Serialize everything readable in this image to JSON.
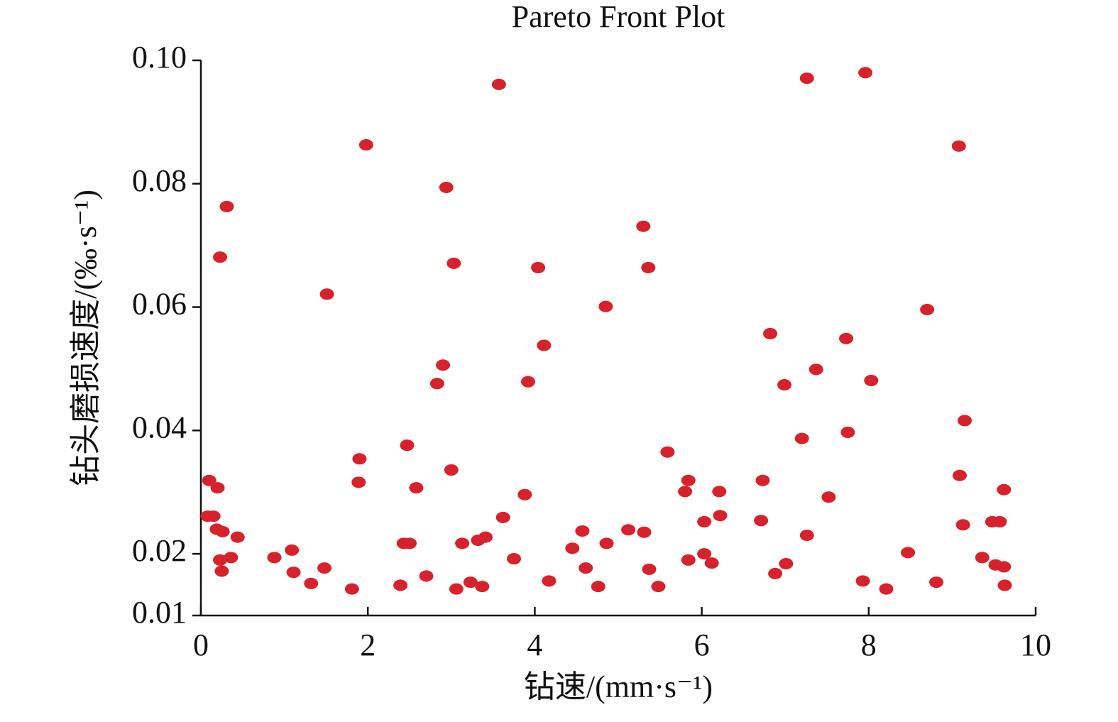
{
  "chart_data": {
    "type": "scatter",
    "title": "Pareto Front Plot",
    "x_label": "钻速/(mm·s⁻¹)",
    "y_label": "钻头磨损速度/(‰·s⁻¹)",
    "color": "#d7222b",
    "x": [
      0.1,
      0.2,
      0.08,
      0.15,
      0.19,
      0.26,
      0.23,
      0.25,
      0.36,
      0.44,
      0.31,
      0.23,
      0.88,
      1.09,
      1.11,
      1.32,
      1.48,
      1.51,
      1.81,
      1.89,
      1.9,
      1.98,
      2.39,
      2.43,
      2.5,
      2.47,
      2.58,
      2.7,
      2.83,
      2.9,
      2.94,
      3.0,
      3.03,
      3.06,
      3.13,
      3.23,
      3.32,
      3.37,
      3.41,
      3.57,
      3.62,
      3.75,
      3.88,
      3.92,
      4.04,
      4.11,
      4.17,
      4.45,
      4.57,
      4.61,
      4.76,
      4.85,
      4.86,
      5.12,
      5.3,
      5.31,
      5.36,
      5.37,
      5.48,
      5.59,
      5.8,
      5.84,
      5.84,
      6.03,
      6.03,
      6.12,
      6.21,
      6.22,
      6.71,
      6.73,
      6.82,
      6.88,
      6.99,
      7.01,
      7.2,
      7.26,
      7.26,
      7.37,
      7.52,
      7.73,
      7.75,
      7.93,
      7.96,
      8.03,
      8.21,
      8.47,
      8.7,
      8.81,
      9.08,
      9.09,
      9.13,
      9.15,
      9.36,
      9.48,
      9.52,
      9.57,
      9.62,
      9.62,
      9.63
    ],
    "y": [
      0.0319,
      0.0307,
      0.0261,
      0.0261,
      0.024,
      0.0236,
      0.019,
      0.0172,
      0.0194,
      0.0227,
      0.0763,
      0.0681,
      0.0194,
      0.0206,
      0.017,
      0.0152,
      0.0177,
      0.0621,
      0.0143,
      0.0316,
      0.0354,
      0.0863,
      0.0149,
      0.0217,
      0.0217,
      0.0376,
      0.0307,
      0.0164,
      0.0476,
      0.0506,
      0.0794,
      0.0336,
      0.0671,
      0.0143,
      0.0217,
      0.0154,
      0.0222,
      0.0147,
      0.0227,
      0.0961,
      0.0259,
      0.0192,
      0.0296,
      0.0479,
      0.0664,
      0.0538,
      0.0156,
      0.0209,
      0.0237,
      0.0177,
      0.0147,
      0.0601,
      0.0217,
      0.0239,
      0.0731,
      0.0235,
      0.0664,
      0.0175,
      0.0147,
      0.0365,
      0.0301,
      0.0319,
      0.019,
      0.0252,
      0.02,
      0.0185,
      0.0301,
      0.0262,
      0.0254,
      0.0319,
      0.0557,
      0.0168,
      0.0474,
      0.0184,
      0.0387,
      0.023,
      0.0971,
      0.0499,
      0.0292,
      0.0549,
      0.0397,
      0.0156,
      0.098,
      0.0481,
      0.0143,
      0.0202,
      0.0596,
      0.0154,
      0.0861,
      0.0327,
      0.0247,
      0.0416,
      0.0194,
      0.0252,
      0.0182,
      0.0252,
      0.0304,
      0.0179,
      0.0149
    ],
    "xlim": [
      0,
      10
    ],
    "xticks": [
      0,
      2,
      4,
      6,
      8,
      10
    ],
    "ylim": [
      0.01,
      0.1
    ],
    "yticks": [
      0.01,
      0.02,
      0.04,
      0.06,
      0.08,
      {
        "value": 0.1,
        "label": "0.10"
      }
    ]
  }
}
